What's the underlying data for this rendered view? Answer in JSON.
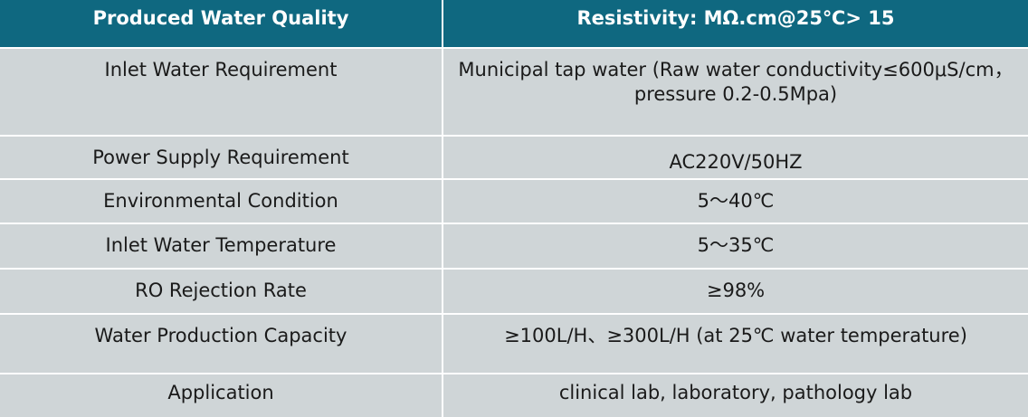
{
  "table": {
    "header": {
      "left": "Produced Water Quality",
      "right": "Resistivity: MΩ.cm@25℃> 15"
    },
    "rows": [
      {
        "label": "Inlet Water Requirement",
        "value_line1": "Municipal tap water (Raw water conductivity≤600μS/cm，",
        "value_line2": "pressure 0.2-0.5Mpa)"
      },
      {
        "label": "Power Supply Requirement",
        "value": "AC220V/50HZ"
      },
      {
        "label": "Environmental Condition",
        "value": "5～40℃"
      },
      {
        "label": "Inlet Water Temperature",
        "value": "5～35℃"
      },
      {
        "label": "RO Rejection Rate",
        "value": "≥98%"
      },
      {
        "label": "Water Production Capacity",
        "value": "≥100L/H、≥300L/H (at 25℃ water temperature)"
      },
      {
        "label": "Application",
        "value": "clinical lab, laboratory, pathology lab"
      }
    ]
  }
}
